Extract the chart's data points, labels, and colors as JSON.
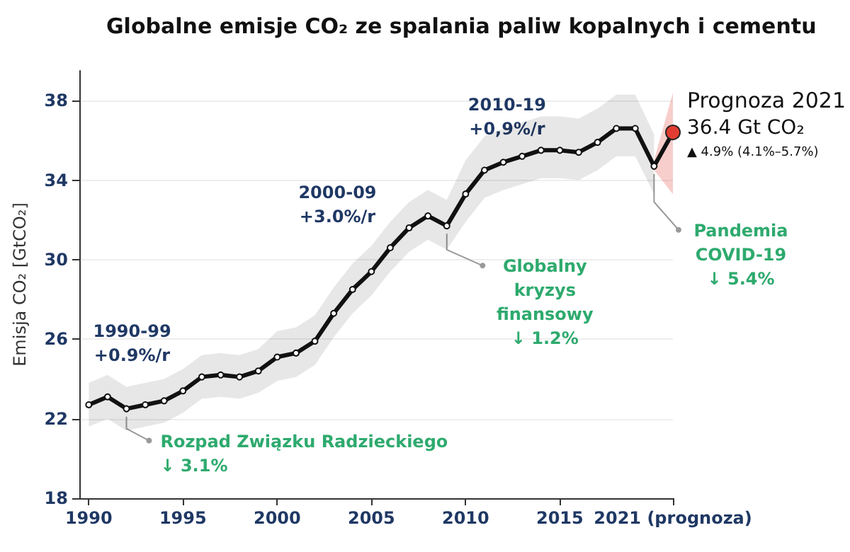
{
  "chart_data": {
    "type": "line",
    "title": "Globalne emisje CO₂ ze spalania paliw kopalnych i cementu",
    "ylabel": "Emisja CO₂ [GtCO₂]",
    "x": [
      1990,
      1991,
      1992,
      1993,
      1994,
      1995,
      1996,
      1997,
      1998,
      1999,
      2000,
      2001,
      2002,
      2003,
      2004,
      2005,
      2006,
      2007,
      2008,
      2009,
      2010,
      2011,
      2012,
      2013,
      2014,
      2015,
      2016,
      2017,
      2018,
      2019,
      2020,
      2021
    ],
    "series": [
      {
        "color": "#111111",
        "marker": "circle",
        "values": [
          22.7,
          23.1,
          22.5,
          22.7,
          22.9,
          23.4,
          24.1,
          24.2,
          24.1,
          24.4,
          25.1,
          25.3,
          25.9,
          27.3,
          28.5,
          29.4,
          30.6,
          31.6,
          32.2,
          31.7,
          33.3,
          34.5,
          34.9,
          35.2,
          35.5,
          35.5,
          35.4,
          35.9,
          36.6,
          36.6,
          34.7,
          36.4
        ],
        "lower": [
          21.6,
          22.0,
          21.4,
          21.6,
          21.8,
          22.3,
          23.0,
          23.1,
          23.0,
          23.3,
          23.9,
          24.1,
          24.7,
          26.1,
          27.3,
          28.2,
          29.4,
          30.4,
          31.0,
          30.5,
          31.9,
          33.1,
          33.5,
          33.8,
          34.1,
          34.1,
          34.0,
          34.5,
          35.2,
          35.2,
          33.3,
          null
        ],
        "upper": [
          23.8,
          24.2,
          23.6,
          23.8,
          24.0,
          24.5,
          25.2,
          25.3,
          25.2,
          25.5,
          26.4,
          26.6,
          27.2,
          28.6,
          29.8,
          30.7,
          31.9,
          32.9,
          33.5,
          33.0,
          35.0,
          36.2,
          36.6,
          36.9,
          37.2,
          37.2,
          37.1,
          37.6,
          38.3,
          38.3,
          36.3,
          null
        ]
      },
      {
        "color": "#e03c31",
        "marker": "circle",
        "x": [
          2020,
          2021
        ],
        "values": [
          null,
          36.4
        ],
        "lower": [
          34.5,
          33.3
        ],
        "upper": [
          35.0,
          38.4
        ]
      }
    ],
    "xlim": [
      1989.5,
      2021
    ],
    "xticks": [
      1990,
      1995,
      2000,
      2005,
      2010,
      2015,
      {
        "value": 2021,
        "label": "2021 (prognoza)"
      }
    ],
    "ylim": [
      18,
      39.5
    ],
    "yticks": [
      18,
      22,
      26,
      30,
      34,
      38
    ],
    "grid": "y",
    "annotations": [
      "1990-99\n+0.9%/r",
      "2000-09\n+3.0%/r",
      "2010-19\n+0,9%/r",
      {
        "text": "Rozpad Związku Radzieckiego\n↓ 3.1%",
        "x": 1992,
        "y": 22.5
      },
      {
        "text": "Globalny\nkryzys\nfinansowy\n↓ 1.2%",
        "x": 2009,
        "y": 31.7
      },
      {
        "text": "Pandemia\nCOVID-19\n↓ 5.4%",
        "x": 2020,
        "y": 34.7
      },
      "Prognoza 2021",
      "36.4 Gt CO₂",
      "▲ 4.9% (4.1%–5.7%)"
    ]
  }
}
